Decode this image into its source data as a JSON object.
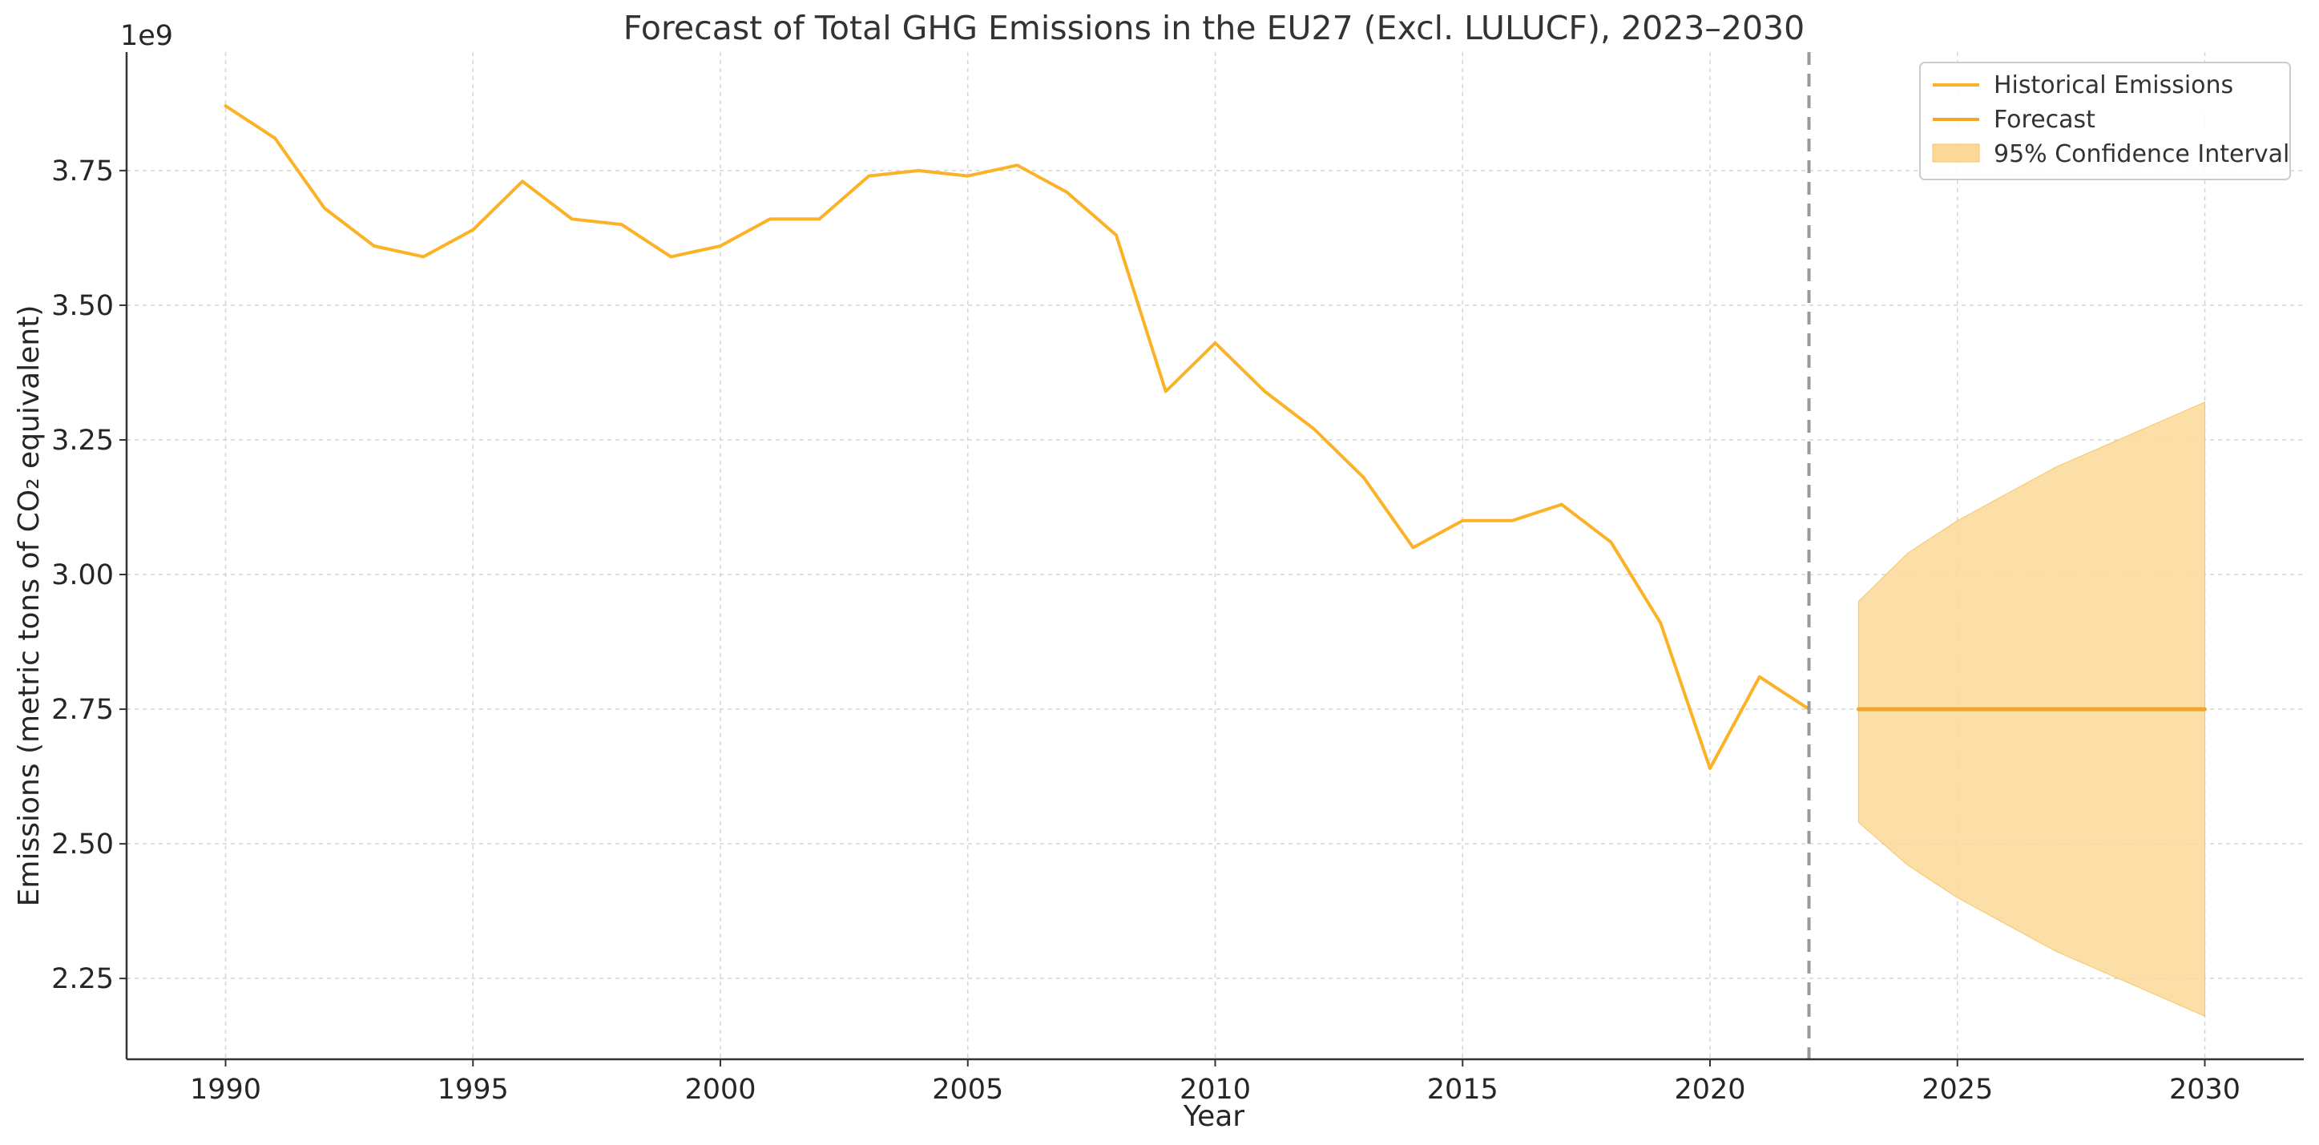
{
  "chart_data": {
    "type": "line",
    "title": "Forecast of Total GHG Emissions in the EU27 (Excl. LULUCF), 2023–2030",
    "xlabel": "Year",
    "ylabel": "Emissions (metric tons of CO₂ equivalent)",
    "y_offset_label": "1e9",
    "y_scale": 1000000000,
    "xlim": [
      1988,
      2032
    ],
    "ylim": [
      2.1,
      3.97
    ],
    "x_ticks": [
      1990,
      1995,
      2000,
      2005,
      2010,
      2015,
      2020,
      2025,
      2030
    ],
    "y_ticks": [
      2.25,
      2.5,
      2.75,
      3.0,
      3.25,
      3.5,
      3.75
    ],
    "y_tick_labels": [
      "2.25",
      "2.50",
      "2.75",
      "3.00",
      "3.25",
      "3.50",
      "3.75"
    ],
    "grid": true,
    "legend_position": "top-right",
    "vertical_marker": {
      "x": 2022,
      "style": "dashed",
      "color": "#999999"
    },
    "series": [
      {
        "name": "Historical Emissions",
        "kind": "line",
        "color": "#FBB226",
        "x": [
          1990,
          1991,
          1992,
          1993,
          1994,
          1995,
          1996,
          1997,
          1998,
          1999,
          2000,
          2001,
          2002,
          2003,
          2004,
          2005,
          2006,
          2007,
          2008,
          2009,
          2010,
          2011,
          2012,
          2013,
          2014,
          2015,
          2016,
          2017,
          2018,
          2019,
          2020,
          2021,
          2022
        ],
        "values": [
          3.87,
          3.81,
          3.68,
          3.61,
          3.59,
          3.64,
          3.73,
          3.66,
          3.65,
          3.59,
          3.61,
          3.66,
          3.66,
          3.74,
          3.75,
          3.74,
          3.76,
          3.71,
          3.63,
          3.34,
          3.43,
          3.34,
          3.27,
          3.18,
          3.05,
          3.1,
          3.1,
          3.13,
          3.06,
          2.91,
          2.64,
          2.81,
          2.75
        ]
      },
      {
        "name": "Forecast",
        "kind": "line",
        "color": "#F5A623",
        "x": [
          2023,
          2024,
          2025,
          2026,
          2027,
          2028,
          2029,
          2030
        ],
        "values": [
          2.75,
          2.75,
          2.75,
          2.75,
          2.75,
          2.75,
          2.75,
          2.75
        ]
      },
      {
        "name": "95% Confidence Interval",
        "kind": "band",
        "color": "#FBD898",
        "x": [
          2023,
          2024,
          2025,
          2026,
          2027,
          2028,
          2029,
          2030
        ],
        "lower": [
          2.54,
          2.46,
          2.4,
          2.35,
          2.3,
          2.26,
          2.22,
          2.18
        ],
        "upper": [
          2.95,
          3.04,
          3.1,
          3.15,
          3.2,
          3.24,
          3.28,
          3.32
        ]
      }
    ]
  }
}
